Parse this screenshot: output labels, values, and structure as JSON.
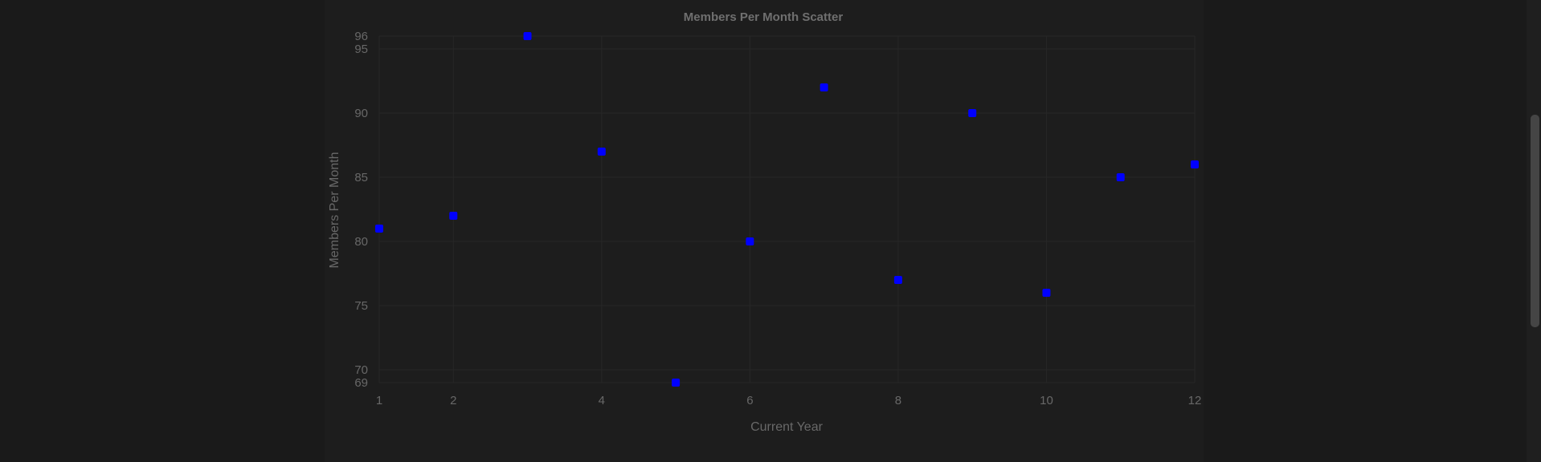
{
  "chart_data": {
    "type": "scatter",
    "title": "Members Per Month Scatter",
    "xlabel": "Current Year",
    "ylabel": "Members Per Month",
    "x": [
      1,
      2,
      3,
      4,
      5,
      6,
      7,
      8,
      9,
      10,
      11,
      12
    ],
    "y": [
      81,
      82,
      96,
      87,
      69,
      80,
      92,
      77,
      90,
      76,
      85,
      86
    ],
    "xlim": [
      1,
      12
    ],
    "ylim": [
      69,
      96
    ],
    "x_ticks": [
      1,
      2,
      4,
      6,
      8,
      10,
      12
    ],
    "y_ticks": [
      69,
      70,
      75,
      80,
      85,
      90,
      95,
      96
    ],
    "grid": true,
    "point_color": "#0000ff"
  },
  "page": {
    "background": "#1a1a1a",
    "panel_background": "#1d1d1d"
  }
}
